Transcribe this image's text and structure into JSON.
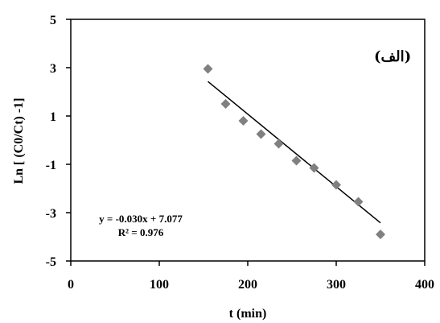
{
  "chart_data": {
    "type": "scatter",
    "xlabel": "t (min)",
    "ylabel": "Ln [ (C0/Ct) -1]",
    "xlim": [
      0,
      400
    ],
    "ylim": [
      -5,
      5
    ],
    "xticks": [
      "0",
      "100",
      "200",
      "300",
      "400"
    ],
    "yticks": [
      "5",
      "3",
      "1",
      "-1",
      "-3",
      "-5"
    ],
    "grid": false,
    "panel_label": "(الف)",
    "series": [
      {
        "marker": "diamond",
        "color": "#808080",
        "x": [
          155,
          175,
          195,
          215,
          235,
          255,
          275,
          300,
          325,
          350
        ],
        "y": [
          2.95,
          1.5,
          0.8,
          0.25,
          -0.15,
          -0.85,
          -1.15,
          -1.85,
          -2.55,
          -3.9
        ]
      }
    ],
    "trendline": {
      "slope": -0.03,
      "intercept": 7.077,
      "x_range": [
        155,
        350
      ],
      "color": "#000000",
      "equation": "y = -0.030x + 7.077",
      "r_squared": "R² = 0.976"
    }
  }
}
